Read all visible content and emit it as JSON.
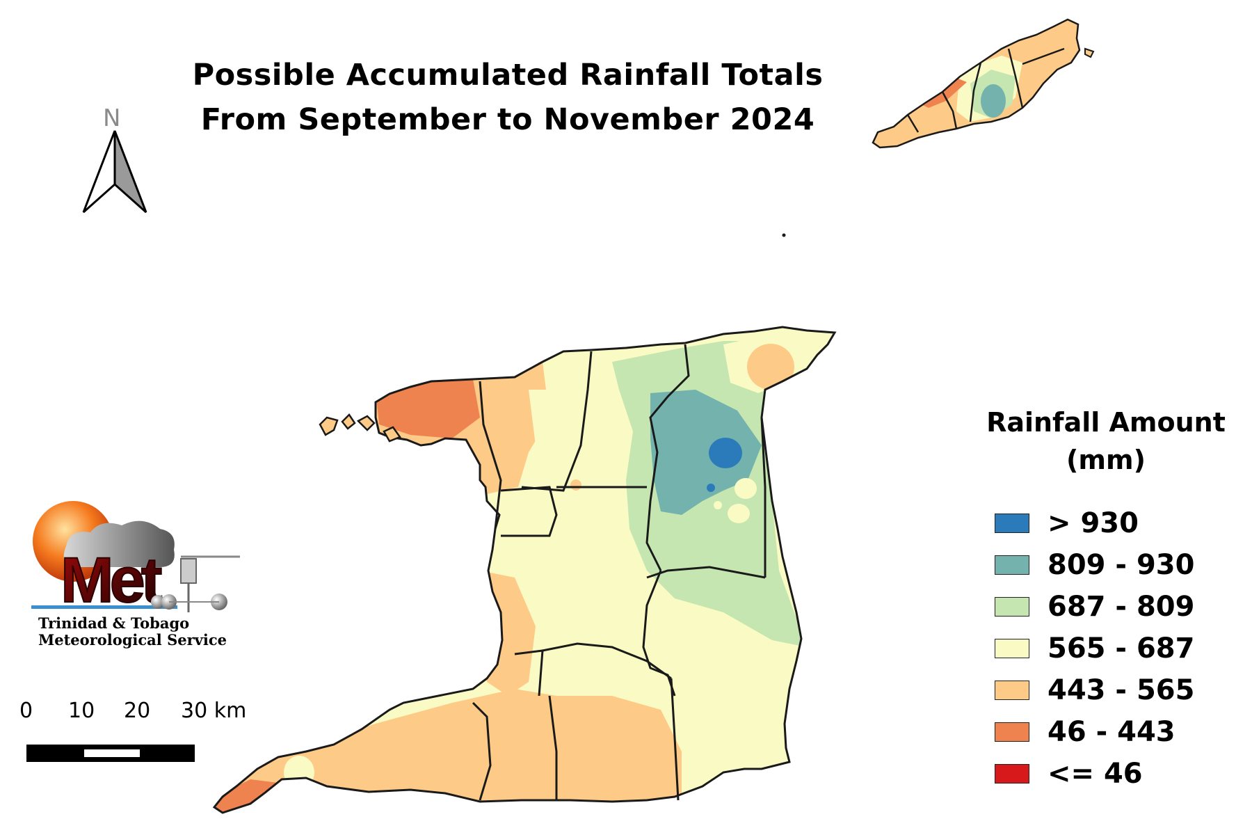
{
  "title": {
    "line1": "Possible  Accumulated  Rainfall  Totals",
    "line2": "From September to November 2024"
  },
  "north_arrow": {
    "letter": "N"
  },
  "legend": {
    "title_line1": "Rainfall Amount",
    "title_line2": "(mm)",
    "classes": [
      {
        "label": "> 930",
        "color": "#2b7bba"
      },
      {
        "label": "809 - 930",
        "color": "#74b3ad"
      },
      {
        "label": "687 - 809",
        "color": "#c5e6b0"
      },
      {
        "label": "565 - 687",
        "color": "#fafbc4"
      },
      {
        "label": "443 - 565",
        "color": "#fdcb87"
      },
      {
        "label": "46 - 443",
        "color": "#ef8350"
      },
      {
        "label": "<= 46",
        "color": "#d7191c"
      }
    ]
  },
  "logo": {
    "wordmark": "Met",
    "org_line1": "Trinidad & Tobago",
    "org_line2": "Meteorological Service"
  },
  "scale_bar": {
    "labels": [
      "0",
      "10",
      "20",
      "30 km"
    ]
  }
}
